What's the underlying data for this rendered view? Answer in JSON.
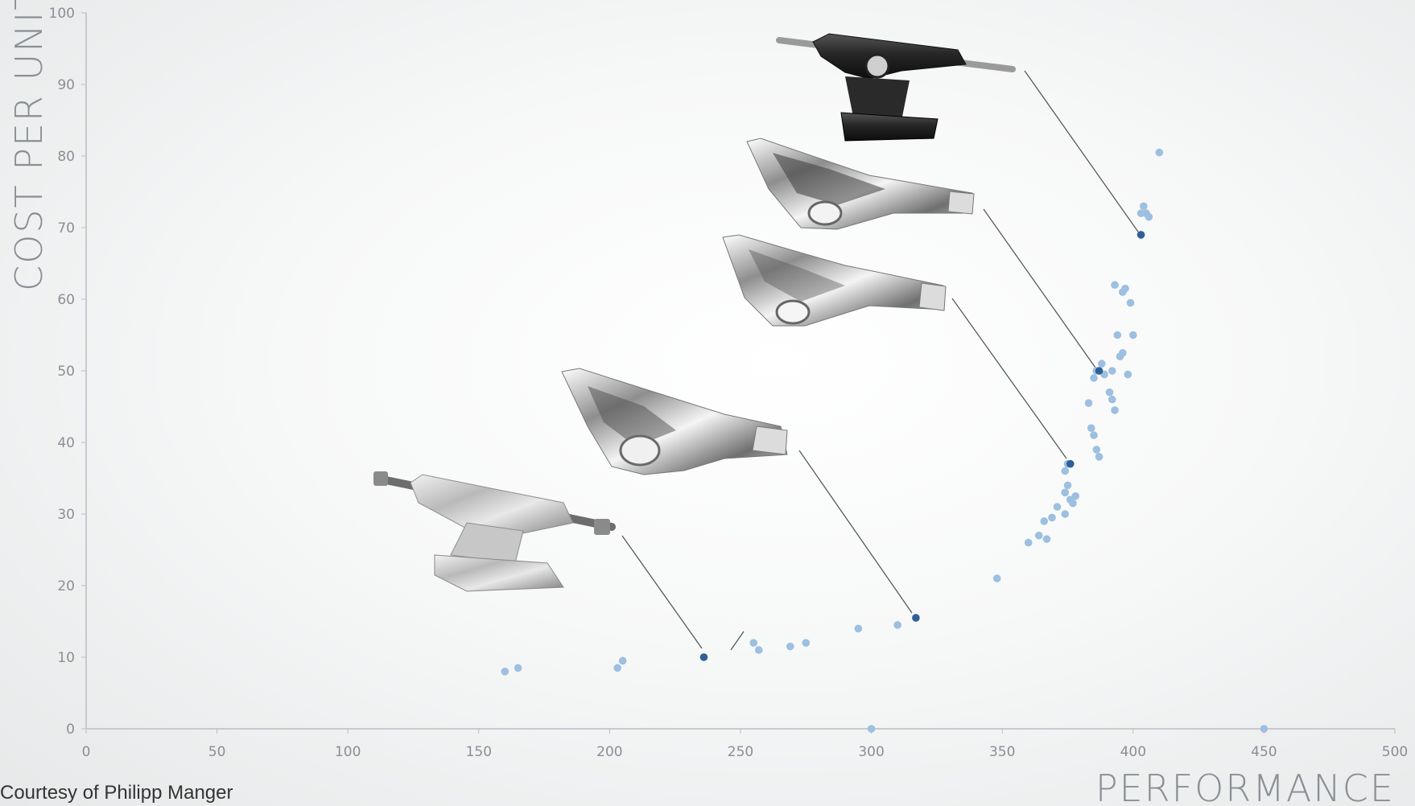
{
  "credit": "Courtesy of Philipp Manger",
  "colors": {
    "point_light": "#9dbfe0",
    "point_dark": "#2f5f97",
    "axis": "#b9bec3",
    "leader": "#555b61"
  },
  "chart_data": {
    "type": "scatter",
    "title": "",
    "xlabel": "PERFORMANCE",
    "ylabel": "COST PER UNIT",
    "xlim": [
      0,
      500
    ],
    "ylim": [
      0,
      100
    ],
    "xticks": [
      "0",
      "50",
      "100",
      "150",
      "200",
      "250",
      "300",
      "350",
      "400",
      "450",
      "500"
    ],
    "yticks": [
      "0",
      "10",
      "20",
      "30",
      "40",
      "50",
      "60",
      "70",
      "80",
      "90",
      "100"
    ],
    "grid": false,
    "points": [
      [
        160,
        8
      ],
      [
        165,
        8.5
      ],
      [
        203,
        8.5
      ],
      [
        205,
        9.5
      ],
      [
        255,
        12
      ],
      [
        257,
        11
      ],
      [
        269,
        11.5
      ],
      [
        275,
        12
      ],
      [
        295,
        14
      ],
      [
        310,
        14.5
      ],
      [
        348,
        21
      ],
      [
        360,
        26
      ],
      [
        364,
        27
      ],
      [
        366,
        29
      ],
      [
        367,
        26.5
      ],
      [
        369,
        29.5
      ],
      [
        371,
        31
      ],
      [
        374,
        30
      ],
      [
        374,
        33
      ],
      [
        375,
        34
      ],
      [
        376,
        32
      ],
      [
        377,
        31.5
      ],
      [
        378,
        32.5
      ],
      [
        374,
        36
      ],
      [
        375,
        37
      ],
      [
        383,
        45.5
      ],
      [
        384,
        42
      ],
      [
        385,
        41
      ],
      [
        385,
        49
      ],
      [
        386,
        39
      ],
      [
        387,
        38
      ],
      [
        386,
        50
      ],
      [
        388,
        51
      ],
      [
        389,
        49.5
      ],
      [
        391,
        47
      ],
      [
        392,
        46
      ],
      [
        392,
        50
      ],
      [
        393,
        44.5
      ],
      [
        393,
        62
      ],
      [
        394,
        55
      ],
      [
        395,
        52
      ],
      [
        396,
        52.5
      ],
      [
        396,
        61
      ],
      [
        397,
        61.5
      ],
      [
        398,
        49.5
      ],
      [
        399,
        59.5
      ],
      [
        400,
        55
      ],
      [
        403,
        72
      ],
      [
        404,
        73
      ],
      [
        405,
        72
      ],
      [
        406,
        71.5
      ],
      [
        403,
        69
      ],
      [
        410,
        80.5
      ],
      [
        300,
        0
      ],
      [
        450,
        0
      ]
    ],
    "highlighted_points": [
      [
        236,
        10
      ],
      [
        317,
        15.5
      ],
      [
        376,
        37
      ],
      [
        387,
        50
      ],
      [
        403,
        69
      ]
    ]
  }
}
